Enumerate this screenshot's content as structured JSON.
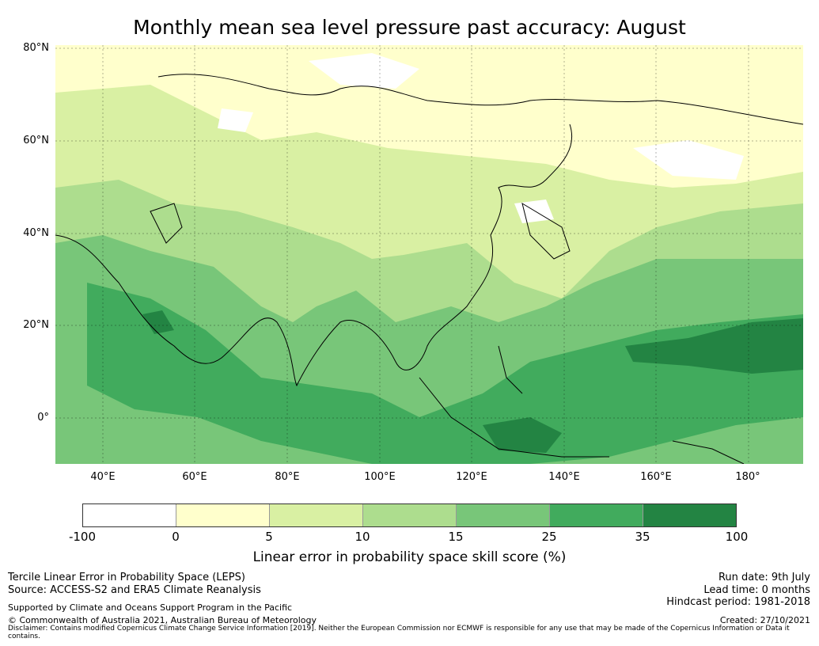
{
  "title": "Monthly mean sea level pressure past accuracy: August",
  "map": {
    "lat_labels": [
      "80°N",
      "60°N",
      "40°N",
      "20°N",
      "0°"
    ],
    "lon_labels": [
      "40°E",
      "60°E",
      "80°E",
      "100°E",
      "120°E",
      "140°E",
      "160°E",
      "180°"
    ]
  },
  "colorbar": {
    "ticks": [
      "-100",
      "0",
      "5",
      "10",
      "15",
      "25",
      "35",
      "100"
    ],
    "colors": [
      "#ffffff",
      "#ffffcc",
      "#d9f0a3",
      "#addd8e",
      "#78c679",
      "#41ab5d",
      "#238443"
    ],
    "label": "Linear error in probability space skill score (%)"
  },
  "footer": {
    "left1": "Tercile Linear Error in Probability Space (LEPS)",
    "left2": "Source: ACCESS-S2 and ERA5 Climate Reanalysis",
    "left3": "Supported by Climate and Oceans Support Program in the Pacific",
    "left4": "© Commonwealth of Australia 2021, Australian Bureau of Meteorology",
    "right1": "Run date: 9th July",
    "right2": "Lead time: 0 months",
    "right3": "Hindcast period: 1981-2018",
    "right4": "Created: 27/10/2021",
    "disclaimer": "Disclaimer: Contains modified Copernicus Climate Change Service Information [2019]. Neither the European Commission nor ECMWF is responsible for any use that may be made of the Copernicus Information or Data it contains."
  }
}
